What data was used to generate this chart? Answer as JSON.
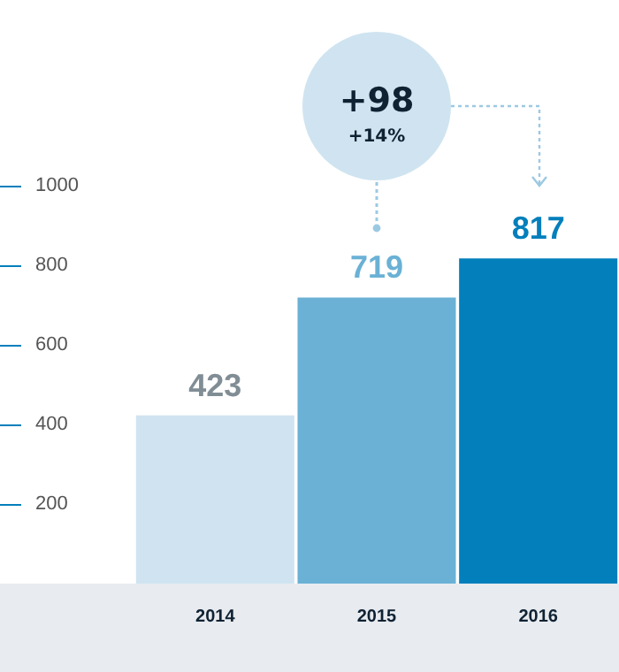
{
  "chart_data": {
    "type": "bar",
    "categories": [
      "2014",
      "2015",
      "2016"
    ],
    "values": [
      423,
      719,
      817
    ],
    "colors": [
      "#cfe4f0",
      "#6ab1d5",
      "#037fbc"
    ],
    "ylim": [
      0,
      1000
    ],
    "yticks": [
      200,
      400,
      600,
      800,
      1000
    ],
    "data_labels": true,
    "annotations": [
      "+98",
      "+14%"
    ]
  }
}
